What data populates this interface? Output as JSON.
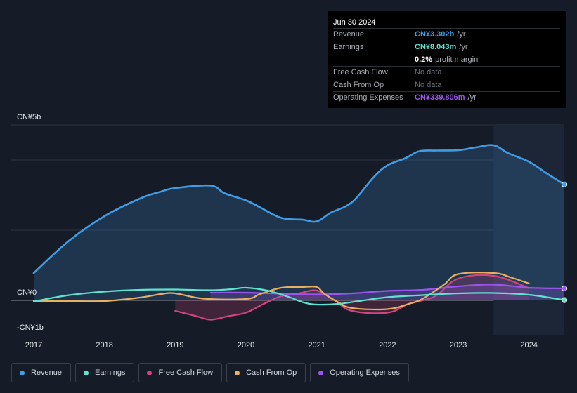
{
  "tooltip": {
    "date": "Jun 30 2024",
    "rows": [
      {
        "label": "Revenue",
        "value": "CN¥3.302b",
        "unit": "/yr",
        "color": "#3f9de6"
      },
      {
        "label": "Earnings",
        "value": "CN¥8.043m",
        "unit": "/yr",
        "color": "#5fe3d0"
      },
      {
        "label": "",
        "value": "0.2%",
        "unit": "profit margin",
        "color": "#ffffff"
      },
      {
        "label": "Free Cash Flow",
        "value": "No data"
      },
      {
        "label": "Cash From Op",
        "value": "No data"
      },
      {
        "label": "Operating Expenses",
        "value": "CN¥339.806m",
        "unit": "/yr",
        "color": "#9b55ee"
      }
    ]
  },
  "chart_data": {
    "type": "line",
    "y_unit": "CN¥ billions",
    "ylim": [
      -1,
      5
    ],
    "xlim": [
      2017,
      2024.5
    ],
    "y_tick_labels": [
      {
        "value": 5,
        "label": "CN¥5b"
      },
      {
        "value": 0,
        "label": "CN¥0"
      },
      {
        "value": -1,
        "label": "-CN¥1b"
      }
    ],
    "x_tick_labels": [
      "2017",
      "2018",
      "2019",
      "2020",
      "2021",
      "2022",
      "2023",
      "2024"
    ],
    "highlight_from": 2023.5,
    "series": [
      {
        "name": "Revenue",
        "color": "#3f9de6",
        "fill": true,
        "x": [
          2017.0,
          2017.5,
          2018.0,
          2018.5,
          2018.8,
          2019.0,
          2019.5,
          2019.7,
          2020.0,
          2020.2,
          2020.5,
          2020.8,
          2021.0,
          2021.2,
          2021.5,
          2021.8,
          2022.0,
          2022.25,
          2022.45,
          2022.7,
          2023.0,
          2023.25,
          2023.5,
          2023.7,
          2024.0,
          2024.25,
          2024.5
        ],
        "y": [
          0.78,
          1.7,
          2.4,
          2.9,
          3.1,
          3.2,
          3.27,
          3.05,
          2.85,
          2.65,
          2.35,
          2.3,
          2.25,
          2.5,
          2.8,
          3.5,
          3.85,
          4.05,
          4.25,
          4.27,
          4.28,
          4.36,
          4.42,
          4.2,
          3.95,
          3.62,
          3.302
        ]
      },
      {
        "name": "Earnings",
        "color": "#5fe3d0",
        "fill": false,
        "x": [
          2017.0,
          2017.5,
          2018.0,
          2018.5,
          2019.0,
          2019.5,
          2019.8,
          2020.0,
          2020.3,
          2020.6,
          2020.8,
          2021.0,
          2021.3,
          2021.6,
          2022.0,
          2022.5,
          2023.0,
          2023.5,
          2024.0,
          2024.5
        ],
        "y": [
          -0.03,
          0.15,
          0.25,
          0.3,
          0.31,
          0.29,
          0.32,
          0.36,
          0.28,
          0.1,
          -0.05,
          -0.12,
          -0.1,
          -0.02,
          0.09,
          0.15,
          0.2,
          0.21,
          0.16,
          0.008
        ]
      },
      {
        "name": "Free Cash Flow",
        "color": "#d1457f",
        "fill": true,
        "x": [
          2019.0,
          2019.3,
          2019.5,
          2019.75,
          2020.0,
          2020.25,
          2020.5,
          2020.75,
          2021.0,
          2021.25,
          2021.5,
          2022.0,
          2022.3,
          2022.5,
          2022.7,
          2023.0,
          2023.5,
          2024.0
        ],
        "y": [
          -0.3,
          -0.45,
          -0.55,
          -0.45,
          -0.35,
          -0.1,
          0.12,
          0.2,
          0.28,
          0.0,
          -0.3,
          -0.35,
          -0.1,
          0.0,
          0.15,
          0.62,
          0.7,
          0.35
        ]
      },
      {
        "name": "Cash From Op",
        "color": "#e8b061",
        "fill": false,
        "x": [
          2017.0,
          2017.5,
          2018.0,
          2018.5,
          2018.8,
          2019.0,
          2019.4,
          2020.0,
          2020.2,
          2020.5,
          2020.8,
          2021.0,
          2021.1,
          2021.3,
          2021.5,
          2022.0,
          2022.3,
          2022.5,
          2022.8,
          2023.0,
          2023.5,
          2023.75,
          2024.0
        ],
        "y": [
          -0.02,
          -0.02,
          -0.02,
          0.08,
          0.18,
          0.2,
          0.05,
          0.04,
          0.18,
          0.36,
          0.38,
          0.38,
          0.2,
          -0.05,
          -0.22,
          -0.25,
          -0.1,
          0.05,
          0.45,
          0.75,
          0.78,
          0.65,
          0.48
        ]
      },
      {
        "name": "Operating Expenses",
        "color": "#9b55ee",
        "fill": true,
        "x": [
          2019.5,
          2020.0,
          2020.5,
          2021.0,
          2021.5,
          2022.0,
          2022.5,
          2023.0,
          2023.5,
          2024.0,
          2024.5
        ],
        "y": [
          0.22,
          0.22,
          0.19,
          0.17,
          0.2,
          0.27,
          0.3,
          0.4,
          0.45,
          0.36,
          0.34
        ]
      }
    ]
  },
  "legend": [
    {
      "label": "Revenue",
      "color": "#3f9de6"
    },
    {
      "label": "Earnings",
      "color": "#5fe3d0"
    },
    {
      "label": "Free Cash Flow",
      "color": "#d1457f"
    },
    {
      "label": "Cash From Op",
      "color": "#e8b061"
    },
    {
      "label": "Operating Expenses",
      "color": "#9b55ee"
    }
  ]
}
